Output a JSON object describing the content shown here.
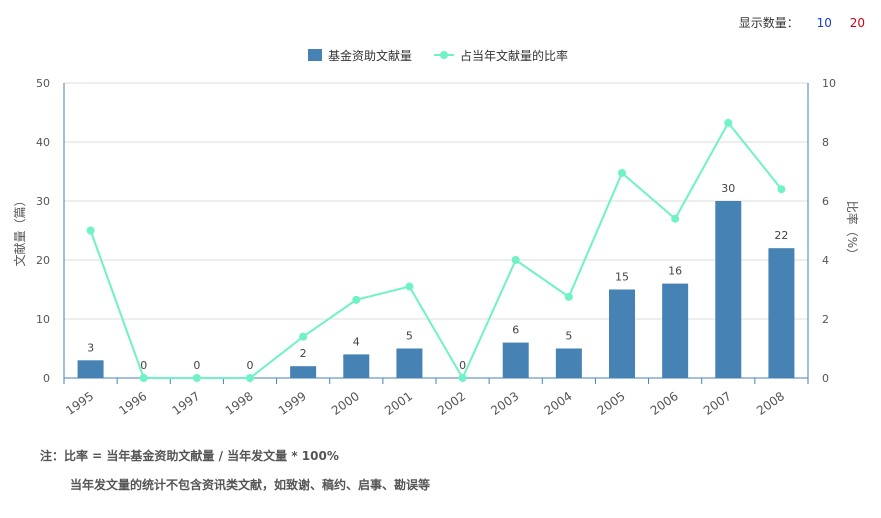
{
  "display": {
    "label": "显示数量：",
    "options": [
      "10",
      "20"
    ]
  },
  "chart_data": {
    "type": "bar+line",
    "categories": [
      "1995",
      "1996",
      "1997",
      "1998",
      "1999",
      "2000",
      "2001",
      "2002",
      "2003",
      "2004",
      "2005",
      "2006",
      "2007",
      "2008"
    ],
    "series": [
      {
        "name": "基金资助文献量",
        "type": "bar",
        "axis": "left",
        "color": "#4682b4",
        "values": [
          3,
          0,
          0,
          0,
          2,
          4,
          5,
          0,
          6,
          5,
          15,
          16,
          30,
          22
        ]
      },
      {
        "name": "占当年文献量的比率",
        "type": "line",
        "axis": "right",
        "color": "#6ef2c6",
        "values": [
          5.0,
          0,
          0,
          0,
          1.4,
          2.65,
          3.1,
          0,
          4.0,
          2.75,
          6.95,
          5.4,
          8.65,
          6.4
        ]
      }
    ],
    "ylabel": "文献量（篇）",
    "y2label": "比率（%）",
    "ylim": [
      0,
      50
    ],
    "y2lim": [
      0,
      10
    ],
    "yticks": [
      0,
      10,
      20,
      30,
      40,
      50
    ],
    "y2ticks": [
      0,
      2,
      4,
      6,
      8,
      10
    ],
    "legend": "top-center",
    "grid": true
  },
  "notes": {
    "line1": "注：比率 = 当年基金资助文献量 / 当年发文量 * 100%",
    "line2": "当年发文量的统计不包含资讯类文献，如致谢、稿约、启事、勘误等"
  }
}
